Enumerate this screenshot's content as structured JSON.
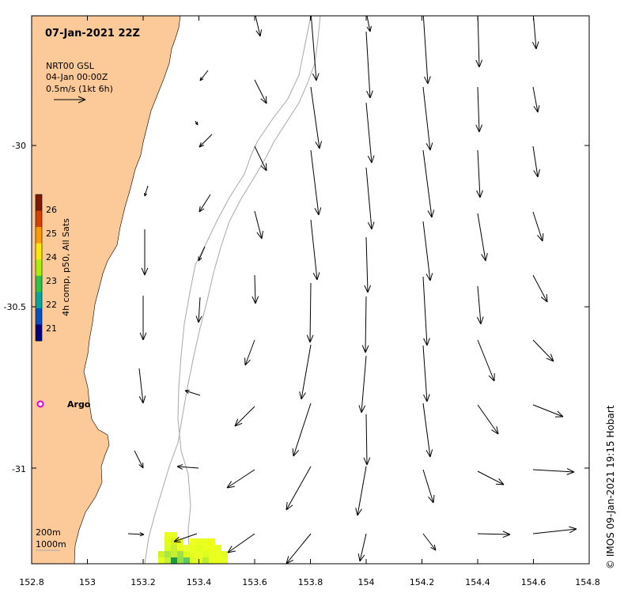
{
  "title": "07-Jan-2021 22Z",
  "vector_legend": {
    "source": "NRT00 GSL",
    "time": "04-Jan 00:00Z",
    "scale": "0.5m/s (1kt 6h)"
  },
  "colorbar": {
    "label": "4h comp, p50, All Sats",
    "ticks": [
      "26",
      "25",
      "24",
      "23",
      "22",
      "21"
    ],
    "colors": [
      "#7f1a00",
      "#d84000",
      "#ff9a00",
      "#ffe800",
      "#a8f000",
      "#2dc44a",
      "#00a8a0",
      "#0050c8",
      "#000080"
    ]
  },
  "argo": {
    "label": "Argo",
    "color": "#e000e0"
  },
  "isobaths": [
    "200m",
    "1000m"
  ],
  "credit": "© IMOS 09-Jan-2021 19:15 Hobart",
  "x_ticks": [
    "152.8",
    "153",
    "153.2",
    "153.4",
    "153.6",
    "153.8",
    "154",
    "154.2",
    "154.4",
    "154.6",
    "154.8"
  ],
  "y_ticks": [
    "-30",
    "-30.5",
    "-31"
  ],
  "colors": {
    "land": "#fcc999",
    "isobath": "#a8a8a8",
    "arrow": "#000000"
  }
}
